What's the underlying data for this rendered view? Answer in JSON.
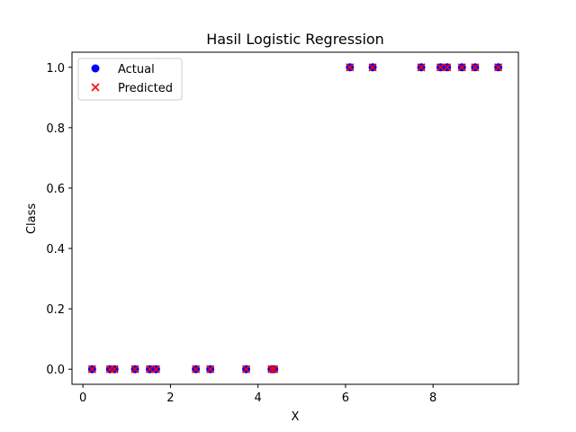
{
  "chart_data": {
    "type": "scatter",
    "title": "Hasil Logistic Regression",
    "xlabel": "X",
    "ylabel": "Class",
    "xlim": [
      -0.25,
      9.95
    ],
    "ylim": [
      -0.05,
      1.05
    ],
    "xticks": [
      0,
      2,
      4,
      6,
      8
    ],
    "xtick_labels": [
      "0",
      "2",
      "4",
      "6",
      "8"
    ],
    "yticks": [
      0.0,
      0.2,
      0.4,
      0.6,
      0.8,
      1.0
    ],
    "ytick_labels": [
      "0.0",
      "0.2",
      "0.4",
      "0.6",
      "0.8",
      "1.0"
    ],
    "grid": false,
    "legend_position": "top-left",
    "series": [
      {
        "name": "Actual",
        "marker": "circle",
        "color": "#0000ff",
        "points": [
          [
            0.21,
            0
          ],
          [
            0.62,
            0
          ],
          [
            0.72,
            0
          ],
          [
            1.19,
            0
          ],
          [
            1.53,
            0
          ],
          [
            1.67,
            0
          ],
          [
            2.58,
            0
          ],
          [
            2.91,
            0
          ],
          [
            3.73,
            0
          ],
          [
            4.31,
            0
          ],
          [
            4.37,
            0
          ],
          [
            6.1,
            1
          ],
          [
            6.62,
            1
          ],
          [
            7.73,
            1
          ],
          [
            8.17,
            1
          ],
          [
            8.32,
            1
          ],
          [
            8.66,
            1
          ],
          [
            8.96,
            1
          ],
          [
            9.49,
            1
          ]
        ]
      },
      {
        "name": "Predicted",
        "marker": "x",
        "color": "#ff0000",
        "points": [
          [
            0.21,
            0
          ],
          [
            0.62,
            0
          ],
          [
            0.72,
            0
          ],
          [
            1.19,
            0
          ],
          [
            1.53,
            0
          ],
          [
            1.67,
            0
          ],
          [
            2.58,
            0
          ],
          [
            2.91,
            0
          ],
          [
            3.73,
            0
          ],
          [
            4.31,
            0
          ],
          [
            4.37,
            0
          ],
          [
            6.1,
            1
          ],
          [
            6.62,
            1
          ],
          [
            7.73,
            1
          ],
          [
            8.17,
            1
          ],
          [
            8.32,
            1
          ],
          [
            8.66,
            1
          ],
          [
            8.96,
            1
          ],
          [
            9.49,
            1
          ]
        ]
      }
    ]
  }
}
